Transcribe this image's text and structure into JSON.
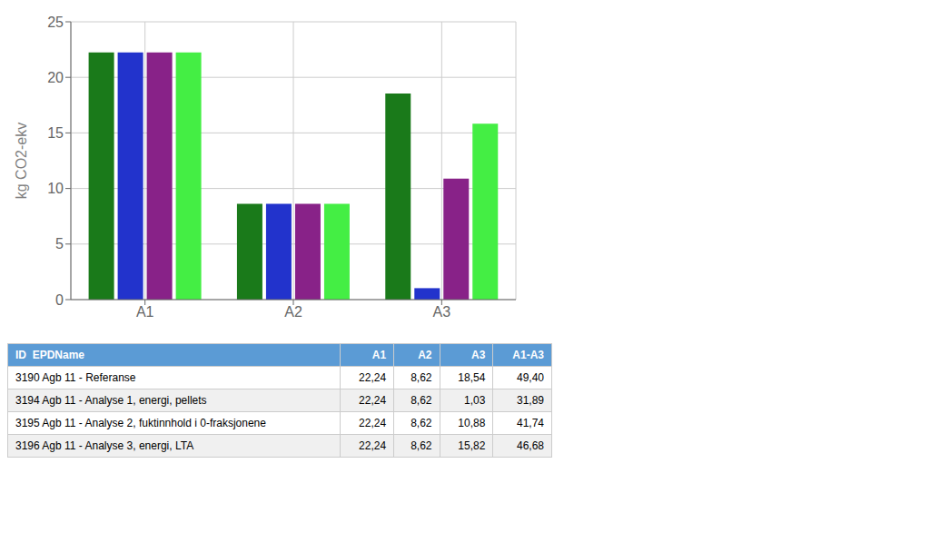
{
  "chart_data": {
    "type": "bar",
    "categories": [
      "A1",
      "A2",
      "A3"
    ],
    "series": [
      {
        "name": "3190 Agb 11 - Referanse",
        "color": "#1a7a1a",
        "values": [
          22.24,
          8.62,
          18.54
        ]
      },
      {
        "name": "3194 Agb 11 - Analyse 1, energi, pellets",
        "color": "#2233cc",
        "values": [
          22.24,
          8.62,
          1.03
        ]
      },
      {
        "name": "3195 Agb 11 - Analyse 2, fuktinnhold i 0-fraksjonene",
        "color": "#882288",
        "values": [
          22.24,
          8.62,
          10.88
        ]
      },
      {
        "name": "3196 Agb 11 - Analyse 3, energi, LTA",
        "color": "#44ee44",
        "values": [
          22.24,
          8.62,
          15.82
        ]
      }
    ],
    "y_label": "kg CO2-ekv",
    "ylim": [
      0,
      25
    ],
    "yticks": [
      0,
      5,
      10,
      15,
      20,
      25
    ],
    "grid": true,
    "table": {
      "header_color": "#5b9bd5",
      "columns": [
        "ID  EPDName",
        "A1",
        "A2",
        "A3",
        "A1-A3"
      ],
      "rows": [
        [
          "3190 Agb 11 - Referanse",
          "22,24",
          "8,62",
          "18,54",
          "49,40"
        ],
        [
          "3194 Agb 11 - Analyse 1, energi, pellets",
          "22,24",
          "8,62",
          "1,03",
          "31,89"
        ],
        [
          "3195 Agb 11 - Analyse 2, fuktinnhold i 0-fraksjonene",
          "22,24",
          "8,62",
          "10,88",
          "41,74"
        ],
        [
          "3196 Agb 11 - Analyse 3, energi, LTA",
          "22,24",
          "8,62",
          "15,82",
          "46,68"
        ]
      ]
    }
  }
}
